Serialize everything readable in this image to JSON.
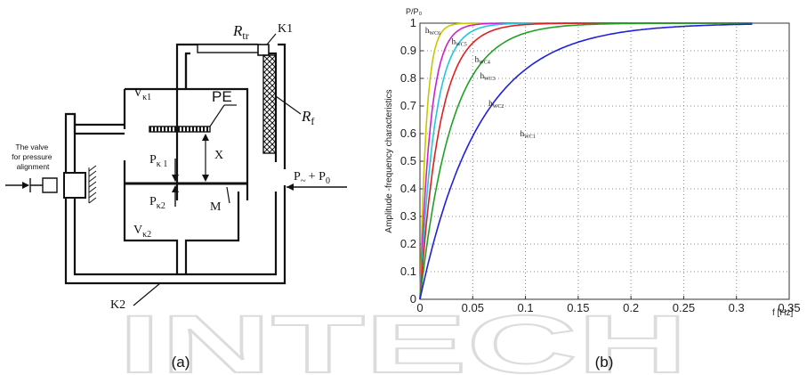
{
  "watermark_text": "INTECH",
  "panel_a": {
    "caption": "(a)",
    "labels": {
      "r_tr": "R",
      "r_tr_sub": "tr",
      "k1": "K1",
      "r_f": "R",
      "r_f_sub": "f",
      "v_k1": "V",
      "v_k1_sub": "κ1",
      "pe": "PE",
      "p_k1": "P",
      "p_k1_sub": "κ 1",
      "x": "X",
      "p_k2": "P",
      "p_k2_sub": "κ2",
      "m": "M",
      "v_k2": "V",
      "v_k2_sub": "κ2",
      "k2": "K2",
      "input_p": "P",
      "input_rest": "+ P",
      "input_sub0": "0",
      "input_tilde": "~",
      "valve_line1": "The valve",
      "valve_line2": "for pressure",
      "valve_line3": "alignment"
    }
  },
  "panel_b": {
    "caption": "(b)",
    "chart_data": {
      "type": "line",
      "title": "",
      "xlabel": "f [Hz]",
      "ylabel": "Amplitude -frequency characteristics",
      "top_label": "P/P₀",
      "xlim": [
        0,
        0.35
      ],
      "ylim": [
        0,
        1
      ],
      "x_ticks": [
        0,
        0.05,
        0.1,
        0.15,
        0.2,
        0.25,
        0.3,
        0.35
      ],
      "x_tick_labels": [
        "0",
        "0.05",
        "0.1",
        "0.15",
        "0.2",
        "0.25",
        "0.3",
        "0.35"
      ],
      "y_ticks": [
        0,
        0.1,
        0.2,
        0.3,
        0.4,
        0.5,
        0.6,
        0.7,
        0.8,
        0.9,
        1
      ],
      "y_tick_labels": [
        "0",
        "0.1",
        "0.2",
        "0.3",
        "0.4",
        "0.5",
        "0.6",
        "0.7",
        "0.8",
        "0.9",
        "1"
      ],
      "grid": "dotted",
      "series": [
        {
          "name": "h",
          "sub": "WC6",
          "color": "#c8c800",
          "fc": 0.006,
          "x_end": 0.315
        },
        {
          "name": "h",
          "sub": "WC5",
          "color": "#cc22cc",
          "fc": 0.01,
          "x_end": 0.315
        },
        {
          "name": "h",
          "sub": "WC4",
          "color": "#22c8d8",
          "fc": 0.014,
          "x_end": 0.315
        },
        {
          "name": "h",
          "sub": "WC3",
          "color": "#e02020",
          "fc": 0.019,
          "x_end": 0.315
        },
        {
          "name": "h",
          "sub": "WC2",
          "color": "#20a020",
          "fc": 0.03,
          "x_end": 0.315
        },
        {
          "name": "h",
          "sub": "WC1",
          "color": "#2020dd",
          "fc": 0.056,
          "x_end": 0.315
        }
      ],
      "series_label_pos": [
        {
          "x": 0.005,
          "y": 0.965
        },
        {
          "x": 0.03,
          "y": 0.925
        },
        {
          "x": 0.052,
          "y": 0.86
        },
        {
          "x": 0.057,
          "y": 0.8
        },
        {
          "x": 0.065,
          "y": 0.7
        },
        {
          "x": 0.095,
          "y": 0.59
        }
      ]
    }
  }
}
